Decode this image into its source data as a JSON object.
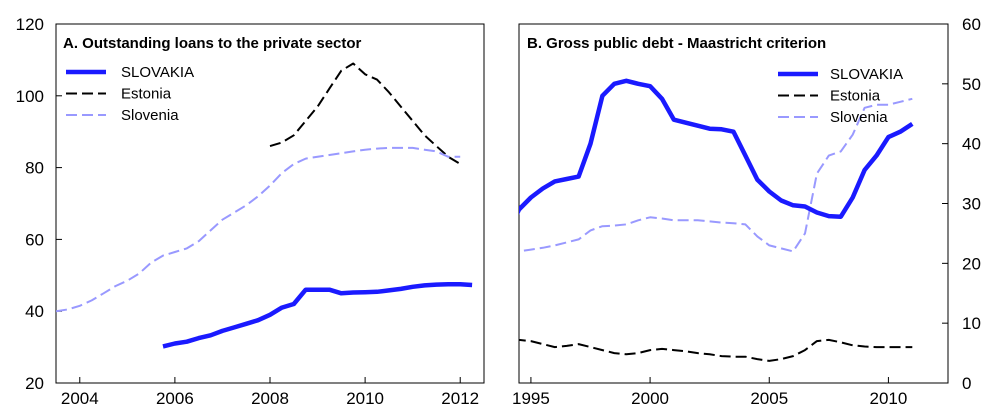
{
  "chart_data": [
    {
      "type": "line",
      "title": "A. Outstanding loans to the private sector",
      "xlabel": "",
      "ylabel": "",
      "xlim": [
        2003.5,
        2012.5
      ],
      "ylim": [
        20,
        120
      ],
      "x_ticks": [
        2004,
        2006,
        2008,
        2010,
        2012
      ],
      "x_tick_labels": [
        "2004",
        "2006",
        "2008",
        "2010",
        "2012"
      ],
      "y_ticks": [
        20,
        40,
        60,
        80,
        100,
        120
      ],
      "y_tick_labels": [
        "20",
        "40",
        "60",
        "80",
        "100",
        "120"
      ],
      "y_axis_side": "left",
      "legend_position": "top-left",
      "series": [
        {
          "name": "SLOVAKIA",
          "color": "#1a1aff",
          "style": "solid",
          "x": [
            2005.75,
            2006.0,
            2006.25,
            2006.5,
            2006.75,
            2007.0,
            2007.25,
            2007.5,
            2007.75,
            2008.0,
            2008.25,
            2008.5,
            2008.75,
            2009.0,
            2009.25,
            2009.5,
            2009.75,
            2010.0,
            2010.25,
            2010.5,
            2010.75,
            2011.0,
            2011.25,
            2011.5,
            2011.75,
            2012.0,
            2012.25
          ],
          "y": [
            30.2,
            31.0,
            31.5,
            32.5,
            33.3,
            34.5,
            35.5,
            36.5,
            37.5,
            39.0,
            41.0,
            42.0,
            46.0,
            46.0,
            46.0,
            45.0,
            45.2,
            45.3,
            45.4,
            45.8,
            46.2,
            46.8,
            47.2,
            47.4,
            47.5,
            47.5,
            47.3
          ]
        },
        {
          "name": "Estonia",
          "color": "#000000",
          "style": "dashed",
          "x": [
            2008.0,
            2008.25,
            2008.5,
            2008.75,
            2009.0,
            2009.25,
            2009.5,
            2009.75,
            2010.0,
            2010.25,
            2010.5,
            2010.75,
            2011.0,
            2011.25,
            2011.5,
            2011.75,
            2012.0
          ],
          "y": [
            86.0,
            87.0,
            89.0,
            93.0,
            97.0,
            102.0,
            107.0,
            109.0,
            106.0,
            104.5,
            101.0,
            97.0,
            93.0,
            89.0,
            86.0,
            83.0,
            81.0
          ]
        },
        {
          "name": "Slovenia",
          "color": "#9999ff",
          "style": "dashed",
          "x": [
            2003.5,
            2003.75,
            2004.0,
            2004.25,
            2004.5,
            2004.75,
            2005.0,
            2005.25,
            2005.5,
            2005.75,
            2006.0,
            2006.25,
            2006.5,
            2006.75,
            2007.0,
            2007.25,
            2007.5,
            2007.75,
            2008.0,
            2008.25,
            2008.5,
            2008.75,
            2009.0,
            2009.25,
            2009.5,
            2009.75,
            2010.0,
            2010.25,
            2010.5,
            2010.75,
            2011.0,
            2011.25,
            2011.5,
            2011.75,
            2012.0
          ],
          "y": [
            40.0,
            40.5,
            41.5,
            43.0,
            45.0,
            47.0,
            48.5,
            50.5,
            53.5,
            55.5,
            56.5,
            57.5,
            59.5,
            62.5,
            65.5,
            67.5,
            69.5,
            72.0,
            75.0,
            78.5,
            81.0,
            82.5,
            83.0,
            83.5,
            84.0,
            84.5,
            85.0,
            85.3,
            85.5,
            85.5,
            85.5,
            85.0,
            84.5,
            83.0,
            83.0
          ]
        }
      ]
    },
    {
      "type": "line",
      "title": "B. Gross public debt - Maastricht criterion",
      "xlabel": "",
      "ylabel": "",
      "xlim": [
        1994.5,
        2012.5
      ],
      "ylim": [
        0,
        60
      ],
      "x_ticks": [
        1995,
        2000,
        2005,
        2010
      ],
      "x_tick_labels": [
        "1995",
        "2000",
        "2005",
        "2010"
      ],
      "y_ticks": [
        0,
        10,
        20,
        30,
        40,
        50,
        60
      ],
      "y_tick_labels": [
        "0",
        "10",
        "20",
        "30",
        "40",
        "50",
        "60"
      ],
      "y_axis_side": "right",
      "legend_position": "top-right",
      "series": [
        {
          "name": "SLOVAKIA",
          "color": "#1a1aff",
          "style": "solid",
          "x": [
            1993.0,
            1993.5,
            1994.0,
            1994.5,
            1995.0,
            1995.5,
            1996.0,
            1996.5,
            1997.0,
            1997.5,
            1998.0,
            1998.5,
            1999.0,
            1999.5,
            2000.0,
            2000.5,
            2001.0,
            2001.5,
            2002.0,
            2002.5,
            2003.0,
            2003.5,
            2004.0,
            2004.5,
            2005.0,
            2005.5,
            2006.0,
            2006.5,
            2007.0,
            2007.5,
            2008.0,
            2008.5,
            2009.0,
            2009.5,
            2010.0,
            2010.5,
            2011.0
          ],
          "y": [
            15.0,
            20.0,
            24.5,
            29.0,
            31.0,
            32.5,
            33.7,
            34.1,
            34.5,
            40.0,
            48.0,
            50.0,
            50.5,
            50.0,
            49.6,
            47.5,
            44.0,
            43.5,
            43.0,
            42.5,
            42.4,
            42.0,
            38.0,
            34.0,
            32.0,
            30.5,
            29.7,
            29.5,
            28.5,
            27.9,
            27.8,
            31.0,
            35.6,
            38.0,
            41.1,
            42.0,
            43.3
          ]
        },
        {
          "name": "Estonia",
          "color": "#000000",
          "style": "dashed",
          "x": [
            1993.0,
            1993.5,
            1994.0,
            1994.5,
            1995.0,
            1995.5,
            1996.0,
            1996.5,
            1997.0,
            1997.5,
            1998.0,
            1998.5,
            1999.0,
            1999.5,
            2000.0,
            2000.5,
            2001.0,
            2001.5,
            2002.0,
            2002.5,
            2003.0,
            2003.5,
            2004.0,
            2004.5,
            2005.0,
            2005.5,
            2006.0,
            2006.5,
            2007.0,
            2007.5,
            2008.0,
            2008.5,
            2009.0,
            2009.5,
            2010.0,
            2010.5,
            2011.0
          ],
          "y": [
            8.2,
            8.0,
            7.6,
            7.2,
            7.0,
            6.5,
            6.0,
            6.2,
            6.5,
            6.0,
            5.5,
            5.0,
            4.8,
            5.0,
            5.5,
            5.7,
            5.5,
            5.3,
            5.0,
            4.8,
            4.5,
            4.4,
            4.4,
            4.0,
            3.7,
            4.0,
            4.5,
            5.5,
            7.0,
            7.2,
            6.8,
            6.3,
            6.1,
            6.0,
            6.0,
            6.0,
            6.0
          ]
        },
        {
          "name": "Slovenia",
          "color": "#9999ff",
          "style": "dashed",
          "x": [
            1993.0,
            1993.5,
            1994.0,
            1994.5,
            1995.0,
            1995.5,
            1996.0,
            1996.5,
            1997.0,
            1997.5,
            1998.0,
            1998.5,
            1999.0,
            1999.5,
            2000.0,
            2000.5,
            2001.0,
            2001.5,
            2002.0,
            2002.5,
            2003.0,
            2003.5,
            2004.0,
            2004.5,
            2005.0,
            2005.5,
            2006.0,
            2006.5,
            2007.0,
            2007.5,
            2008.0,
            2008.5,
            2009.0,
            2009.5,
            2010.0,
            2010.5,
            2011.0
          ],
          "y": [
            18.5,
            20.5,
            21.8,
            22.0,
            22.3,
            22.6,
            23.0,
            23.5,
            24.0,
            25.5,
            26.2,
            26.3,
            26.5,
            27.2,
            27.7,
            27.5,
            27.2,
            27.2,
            27.2,
            27.0,
            26.8,
            26.7,
            26.5,
            24.5,
            23.0,
            22.5,
            22.0,
            25.0,
            35.0,
            38.0,
            38.7,
            41.5,
            46.0,
            46.5,
            46.5,
            47.0,
            47.5
          ]
        }
      ]
    }
  ]
}
